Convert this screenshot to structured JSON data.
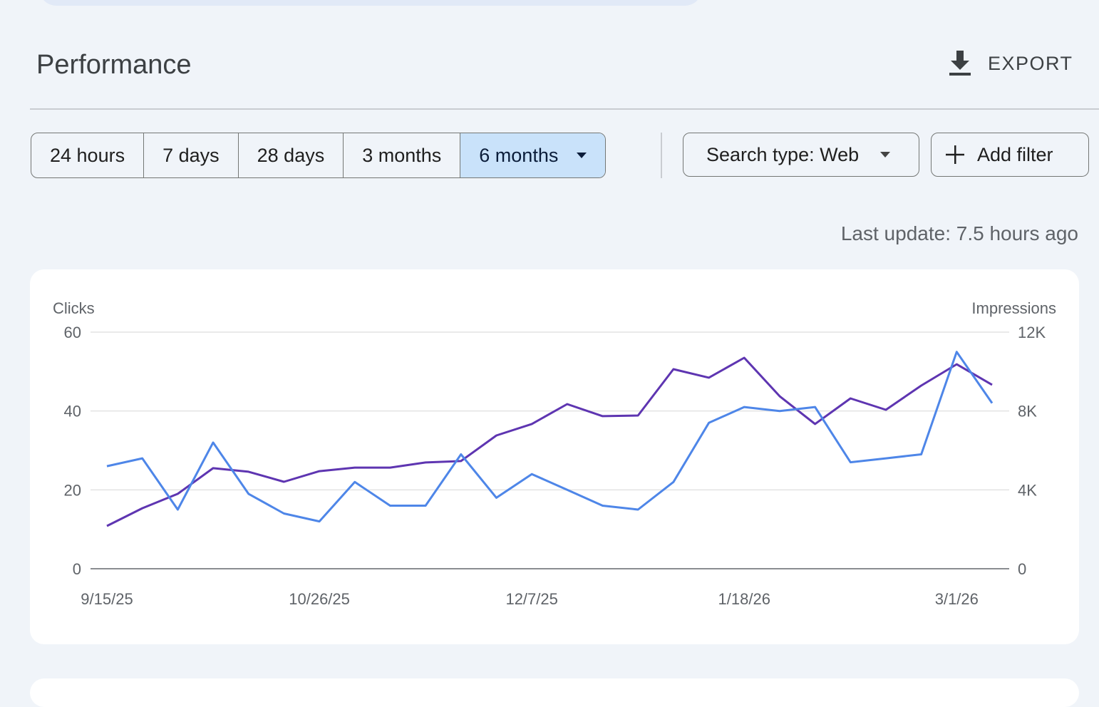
{
  "header": {
    "title": "Performance",
    "export_label": "EXPORT"
  },
  "date_ranges": [
    {
      "label": "24 hours"
    },
    {
      "label": "7 days"
    },
    {
      "label": "28 days"
    },
    {
      "label": "3 months"
    },
    {
      "label": "6 months",
      "selected": true
    }
  ],
  "filters": {
    "search_type": "Search type: Web",
    "add_filter": "Add filter"
  },
  "last_update": "Last update: 7.5 hours ago",
  "colors": {
    "clicks": "#4e86e8",
    "impressions": "#5e35b1"
  },
  "chart_data": {
    "type": "line",
    "left_axis_label": "Clicks",
    "right_axis_label": "Impressions",
    "left_ticks": [
      "0",
      "20",
      "40",
      "60"
    ],
    "right_ticks": [
      "0",
      "4K",
      "8K",
      "12K"
    ],
    "left_ylim": [
      0,
      60
    ],
    "right_ylim": [
      0,
      12000
    ],
    "x_tick_labels": [
      {
        "index": 0,
        "label": "9/15/25"
      },
      {
        "index": 6,
        "label": "10/26/25"
      },
      {
        "index": 12,
        "label": "12/7/25"
      },
      {
        "index": 18,
        "label": "1/18/26"
      },
      {
        "index": 24,
        "label": "3/1/26"
      }
    ],
    "grid": true,
    "series": [
      {
        "name": "Clicks",
        "axis": "left",
        "values": [
          26,
          28,
          15,
          32,
          19,
          14,
          12,
          22,
          16,
          16,
          29,
          18,
          24,
          20,
          16,
          15,
          22,
          37,
          41,
          40,
          41,
          27,
          28,
          29,
          55,
          42
        ]
      },
      {
        "name": "Impressions",
        "axis": "right",
        "values": [
          2170,
          3070,
          3800,
          5100,
          4920,
          4410,
          4950,
          5130,
          5130,
          5390,
          5460,
          6760,
          7340,
          8350,
          7740,
          7770,
          10120,
          9690,
          10700,
          8750,
          7340,
          8640,
          8060,
          9290,
          10370,
          9330
        ]
      }
    ]
  }
}
